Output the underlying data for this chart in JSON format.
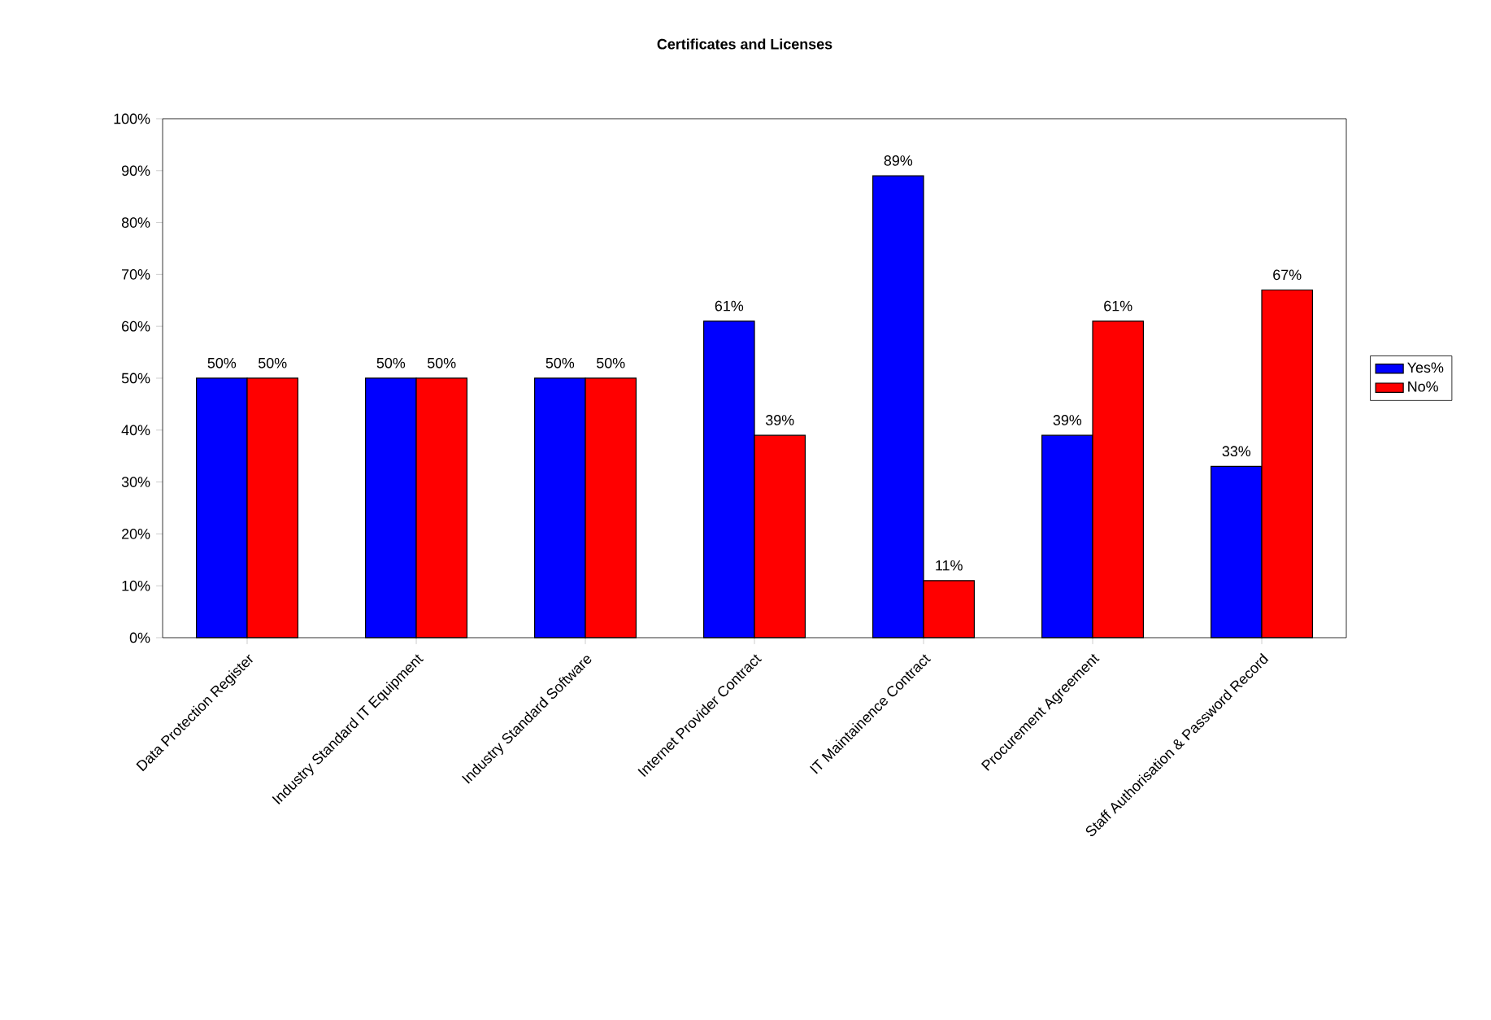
{
  "chart_data": {
    "type": "bar",
    "title": "Certificates and Licenses",
    "categories": [
      "Data Protection Register",
      "Industry Standard IT Equipment",
      "Industry Standard Software",
      "Internet Provider Contract",
      "IT Maintainence Contract",
      "Procurement Agreement",
      "Staff Authorisation & Password Record"
    ],
    "series": [
      {
        "name": "Yes%",
        "color": "#0000ff",
        "values": [
          50,
          50,
          50,
          61,
          89,
          39,
          33
        ],
        "value_labels": [
          "50%",
          "50%",
          "50%",
          "61%",
          "89%",
          "39%",
          "33%"
        ]
      },
      {
        "name": "No%",
        "color": "#ff0000",
        "values": [
          50,
          50,
          50,
          39,
          11,
          61,
          67
        ],
        "value_labels": [
          "50%",
          "50%",
          "50%",
          "39%",
          "11%",
          "61%",
          "67%"
        ]
      }
    ],
    "ylim": [
      0,
      100
    ],
    "yticks": [
      {
        "value": 0,
        "label": "0%"
      },
      {
        "value": 10,
        "label": "10%"
      },
      {
        "value": 20,
        "label": "20%"
      },
      {
        "value": 30,
        "label": "30%"
      },
      {
        "value": 40,
        "label": "40%"
      },
      {
        "value": 50,
        "label": "50%"
      },
      {
        "value": 60,
        "label": "60%"
      },
      {
        "value": 70,
        "label": "70%"
      },
      {
        "value": 80,
        "label": "80%"
      },
      {
        "value": 90,
        "label": "90%"
      },
      {
        "value": 100,
        "label": "100%"
      }
    ],
    "legend": "right",
    "grid": false
  }
}
